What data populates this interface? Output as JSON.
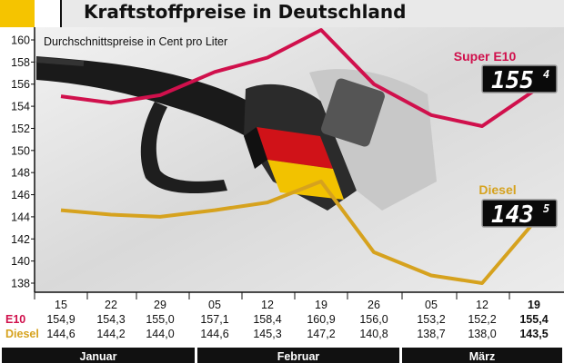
{
  "header": {
    "title": "Kraftstoffpreise in Deutschland"
  },
  "colors": {
    "accent_yellow": "#F5C400",
    "e10_line": "#D0104C",
    "diesel_line": "#D6A21E",
    "band_black": "#111111"
  },
  "chart_data": {
    "type": "line",
    "subtitle": "Durchschnittspreise in Cent pro Liter",
    "ylim": [
      138,
      160
    ],
    "yticks": [
      138,
      140,
      142,
      144,
      146,
      148,
      150,
      152,
      154,
      156,
      158,
      160
    ],
    "categories": [
      "15",
      "22",
      "29",
      "05",
      "12",
      "19",
      "26",
      "05",
      "12",
      "19"
    ],
    "months": [
      "Januar",
      "Februar",
      "März"
    ],
    "series": [
      {
        "name": "Super E10",
        "row_label": "E10",
        "values": [
          154.9,
          154.3,
          155.0,
          157.1,
          158.4,
          160.9,
          156.0,
          153.2,
          152.2,
          155.4
        ],
        "display": [
          "154,9",
          "154,3",
          "155,0",
          "157,1",
          "158,4",
          "160,9",
          "156,0",
          "153,2",
          "152,2",
          "155,4"
        ],
        "readout_main": "155",
        "readout_sup": "4",
        "color": "#D0104C"
      },
      {
        "name": "Diesel",
        "row_label": "Diesel",
        "values": [
          144.6,
          144.2,
          144.0,
          144.6,
          145.3,
          147.2,
          140.8,
          138.7,
          138.0,
          143.5
        ],
        "display": [
          "144,6",
          "144,2",
          "144,0",
          "144,6",
          "145,3",
          "147,2",
          "140,8",
          "138,7",
          "138,0",
          "143,5"
        ],
        "readout_main": "143",
        "readout_sup": "5",
        "color": "#D6A21E"
      }
    ],
    "grid": false,
    "legend": "inline-right"
  }
}
